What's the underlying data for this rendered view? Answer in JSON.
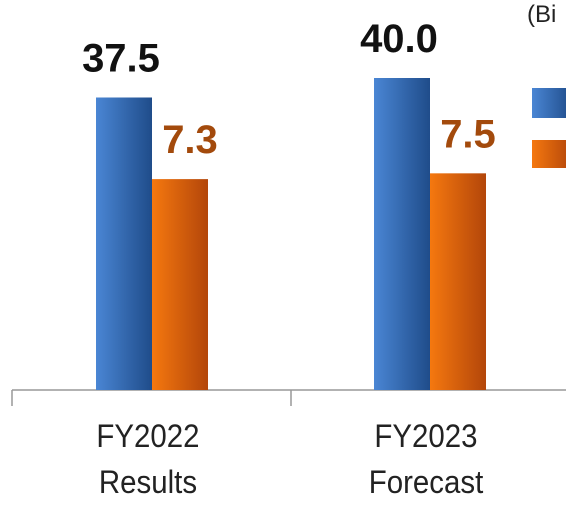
{
  "chart_data": {
    "type": "bar",
    "unit_label": "(Bi",
    "categories": [
      "FY2022\nResults",
      "FY2023\nForecast"
    ],
    "ylim": [
      0,
      50
    ],
    "y2lim": [
      0,
      13.5
    ],
    "series": [
      {
        "color": "#2e67b5",
        "values": [
          37.5,
          40.0
        ],
        "value_labels": [
          "37.5",
          "40.0"
        ],
        "label_color": "#111111"
      },
      {
        "color": "#e36410",
        "values": [
          7.3,
          7.5
        ],
        "value_labels": [
          "7.3",
          "7.5"
        ],
        "label_color": "#a34a0c",
        "axis": "y2"
      }
    ]
  }
}
